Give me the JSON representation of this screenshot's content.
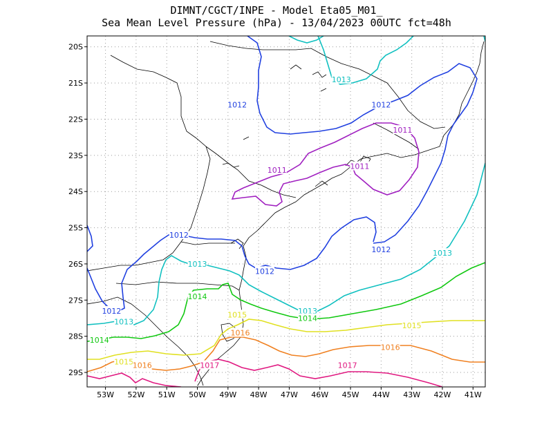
{
  "title": {
    "line1": "DIMNT/CGCT/INPE -  Model Eta05_M01_",
    "line2": "Sea Mean Level Pressure (hPa) - 13/04/2023 00UTC fct=48h"
  },
  "axes": {
    "lat_ticks": [
      "20S",
      "21S",
      "22S",
      "23S",
      "24S",
      "25S",
      "26S",
      "27S",
      "28S",
      "29S"
    ],
    "lon_ticks": [
      "53W",
      "52W",
      "51W",
      "50W",
      "49W",
      "48W",
      "47W",
      "46W",
      "45W",
      "44W",
      "43W",
      "42W",
      "41W"
    ],
    "lon_range": [
      -53.6,
      -40.6
    ],
    "lat_range": [
      -29.4,
      -19.7
    ],
    "grid": "dotted"
  },
  "colors": {
    "1011": "#a020c0",
    "1012": "#2040e0",
    "1013": "#10c0c0",
    "1014": "#10c810",
    "1015": "#e0e020",
    "1016": "#f08020",
    "1017": "#e01880",
    "coast": "#000000"
  },
  "isobars": [
    {
      "value": "1011",
      "labels": [
        [
          -47.4,
          -23.4
        ],
        [
          -44.7,
          -23.3
        ],
        [
          -43.3,
          -22.3
        ]
      ]
    },
    {
      "value": "1012",
      "labels": [
        [
          -48.7,
          -21.6
        ],
        [
          -44.0,
          -21.6
        ],
        [
          -50.6,
          -25.2
        ],
        [
          -47.8,
          -26.2
        ],
        [
          -44.0,
          -25.6
        ],
        [
          -52.8,
          -27.3
        ]
      ]
    },
    {
      "value": "1013",
      "labels": [
        [
          -45.3,
          -20.9
        ],
        [
          -50.0,
          -26.0
        ],
        [
          -42.0,
          -25.7
        ],
        [
          -46.4,
          -27.3
        ],
        [
          -52.4,
          -27.6
        ]
      ]
    },
    {
      "value": "1014",
      "labels": [
        [
          -50.0,
          -26.9
        ],
        [
          -46.4,
          -27.5
        ],
        [
          -53.2,
          -28.1
        ]
      ]
    },
    {
      "value": "1015",
      "labels": [
        [
          -48.7,
          -27.4
        ],
        [
          -43.0,
          -27.7
        ],
        [
          -52.4,
          -28.7
        ]
      ]
    },
    {
      "value": "1016",
      "labels": [
        [
          -48.6,
          -27.9
        ],
        [
          -43.7,
          -28.3
        ],
        [
          -51.8,
          -28.8
        ]
      ]
    },
    {
      "value": "1017",
      "labels": [
        [
          -49.6,
          -28.8
        ],
        [
          -45.1,
          -28.8
        ]
      ]
    }
  ]
}
